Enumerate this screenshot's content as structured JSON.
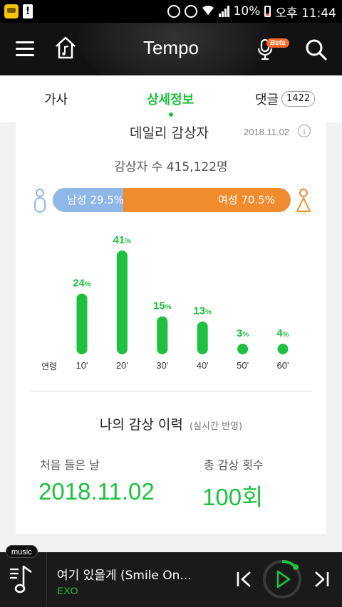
{
  "status": {
    "battery": "10%",
    "time": "오후 11:44"
  },
  "header": {
    "title": "Tempo",
    "beta": "Beta"
  },
  "tabs": [
    {
      "label": "가사"
    },
    {
      "label": "상세정보"
    },
    {
      "label": "댓글",
      "count": "1422"
    }
  ],
  "daily": {
    "title": "데일리 감상자",
    "date": "2018.11.02",
    "listeners": "감상자 수 415,122명",
    "male_label": "남성 29.5%",
    "female_label": "여성 70.5%",
    "male_share": 29.5
  },
  "chart_data": {
    "type": "bar",
    "categories": [
      "10'",
      "20'",
      "30'",
      "40'",
      "50'",
      "60'"
    ],
    "values": [
      24,
      41,
      15,
      13,
      3,
      4
    ],
    "value_suffix": "%",
    "xlabel": "연령",
    "ylim": [
      0,
      41
    ]
  },
  "history": {
    "title": "나의 감상 이력",
    "subtitle": "(실시간 반영)",
    "first_label": "처음 들은 날",
    "first_value": "2018.11.02",
    "total_label": "총 감상 횟수",
    "total_value": "100회"
  },
  "player": {
    "badge": "music",
    "song": "여기 있을게 (Smile On...",
    "artist": "EXO"
  },
  "colors": {
    "accent": "#1fc040",
    "male": "#8fb8e8",
    "female": "#f08c2e"
  }
}
